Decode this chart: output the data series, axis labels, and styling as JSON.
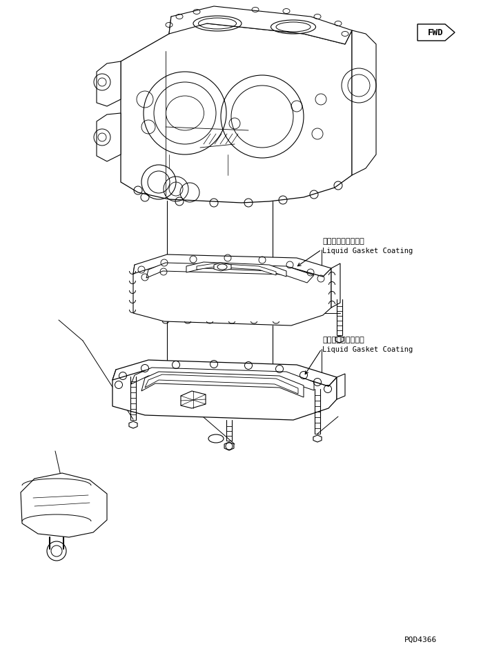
{
  "bg_color": "#ffffff",
  "line_color": "#000000",
  "part_code": "PQD4366",
  "annotation1_jp": "液状ガスケット塗布",
  "annotation1_en": "Liquid Gasket Coating",
  "annotation2_jp": "液状ガスケット塗布",
  "annotation2_en": "Liquid Gasket Coating",
  "fwd_label": "FWD",
  "figsize": [
    7.26,
    9.45
  ],
  "dpi": 100,
  "xlim": [
    0,
    726
  ],
  "ylim": [
    0,
    945
  ]
}
